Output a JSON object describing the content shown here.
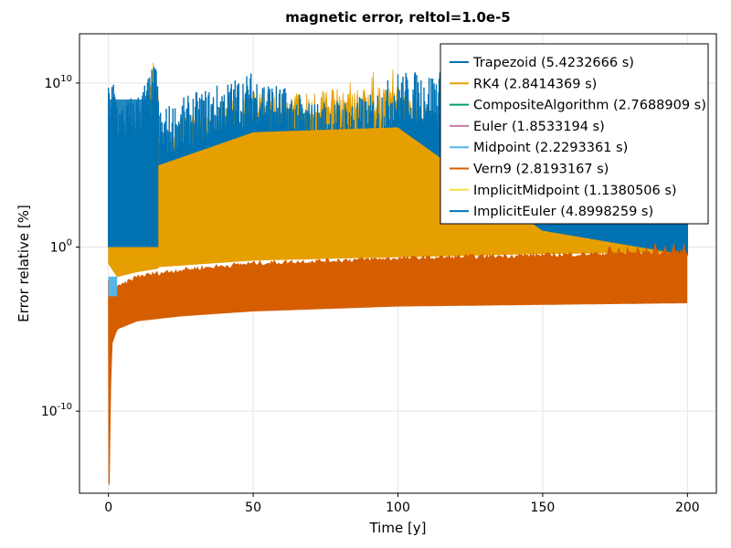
{
  "chart_data": {
    "type": "line",
    "title": "magnetic error, reltol=1.0e-5",
    "xlabel": "Time [y]",
    "ylabel": "Error relative [%]",
    "xlim": [
      -10,
      210
    ],
    "ylim_log10": [
      -15,
      13
    ],
    "yscale": "log",
    "grid": true,
    "legend_position": "top-right",
    "x_ticks": [
      {
        "value": 0,
        "label": "0"
      },
      {
        "value": 50,
        "label": "50"
      },
      {
        "value": 100,
        "label": "100"
      },
      {
        "value": 150,
        "label": "150"
      },
      {
        "value": 200,
        "label": "200"
      }
    ],
    "y_ticks": [
      {
        "exp": 10,
        "base": "10",
        "sup": "10"
      },
      {
        "exp": 0,
        "base": "10",
        "sup": "0"
      },
      {
        "exp": -10,
        "base": "10",
        "sup": "-10"
      }
    ],
    "series": [
      {
        "name": "Trapezoid (5.4232666 s)",
        "color": "#0072b2",
        "envelope": {
          "x": [
            0,
            2,
            4,
            10,
            17,
            17.5,
            30,
            50,
            70,
            90,
            100,
            200
          ],
          "upper_log10": [
            9,
            9.5,
            8,
            8.5,
            10.5,
            7.5,
            8.5,
            9.8,
            8,
            8.3,
            9.8,
            9.7
          ],
          "lower_log10": [
            -2,
            0,
            0,
            0,
            0,
            null,
            null,
            null,
            null,
            null,
            null,
            null
          ]
        }
      },
      {
        "name": "RK4 (2.8414369 s)",
        "color": "#e69f00",
        "envelope": {
          "x": [
            0,
            3,
            10,
            17,
            17.5,
            50,
            100,
            150,
            200
          ],
          "upper_log10": [
            9,
            6,
            8,
            10.8,
            7.5,
            9.5,
            9.8,
            3.5,
            2
          ],
          "lower_log10": [
            -1,
            -1.8,
            -1.5,
            -1.3,
            -1.2,
            -0.8,
            -0.6,
            -0.4,
            -0.3
          ]
        }
      },
      {
        "name": "CompositeAlgorithm (2.7688909 s)",
        "color": "#009e73"
      },
      {
        "name": "Euler (1.8533194 s)",
        "color": "#cc79a7"
      },
      {
        "name": "Midpoint (2.2293361 s)",
        "color": "#56b4e9"
      },
      {
        "name": "Vern9 (2.8193167 s)",
        "color": "#d55e00",
        "envelope": {
          "x": [
            0.3,
            1,
            3,
            10,
            25,
            50,
            100,
            150,
            200
          ],
          "upper_log10": [
            -2,
            -3,
            -2.5,
            -1.8,
            -1.4,
            -1.0,
            -0.7,
            -0.5,
            -0.3
          ],
          "lower_log10": [
            -14.5,
            -6,
            -5,
            -4.5,
            -4.2,
            -3.9,
            -3.6,
            -3.5,
            -3.4
          ]
        }
      },
      {
        "name": "ImplicitMidpoint (1.1380506 s)",
        "color": "#f0e442"
      },
      {
        "name": "ImplicitEuler (4.8998259 s)",
        "color": "#0072b2"
      }
    ]
  }
}
